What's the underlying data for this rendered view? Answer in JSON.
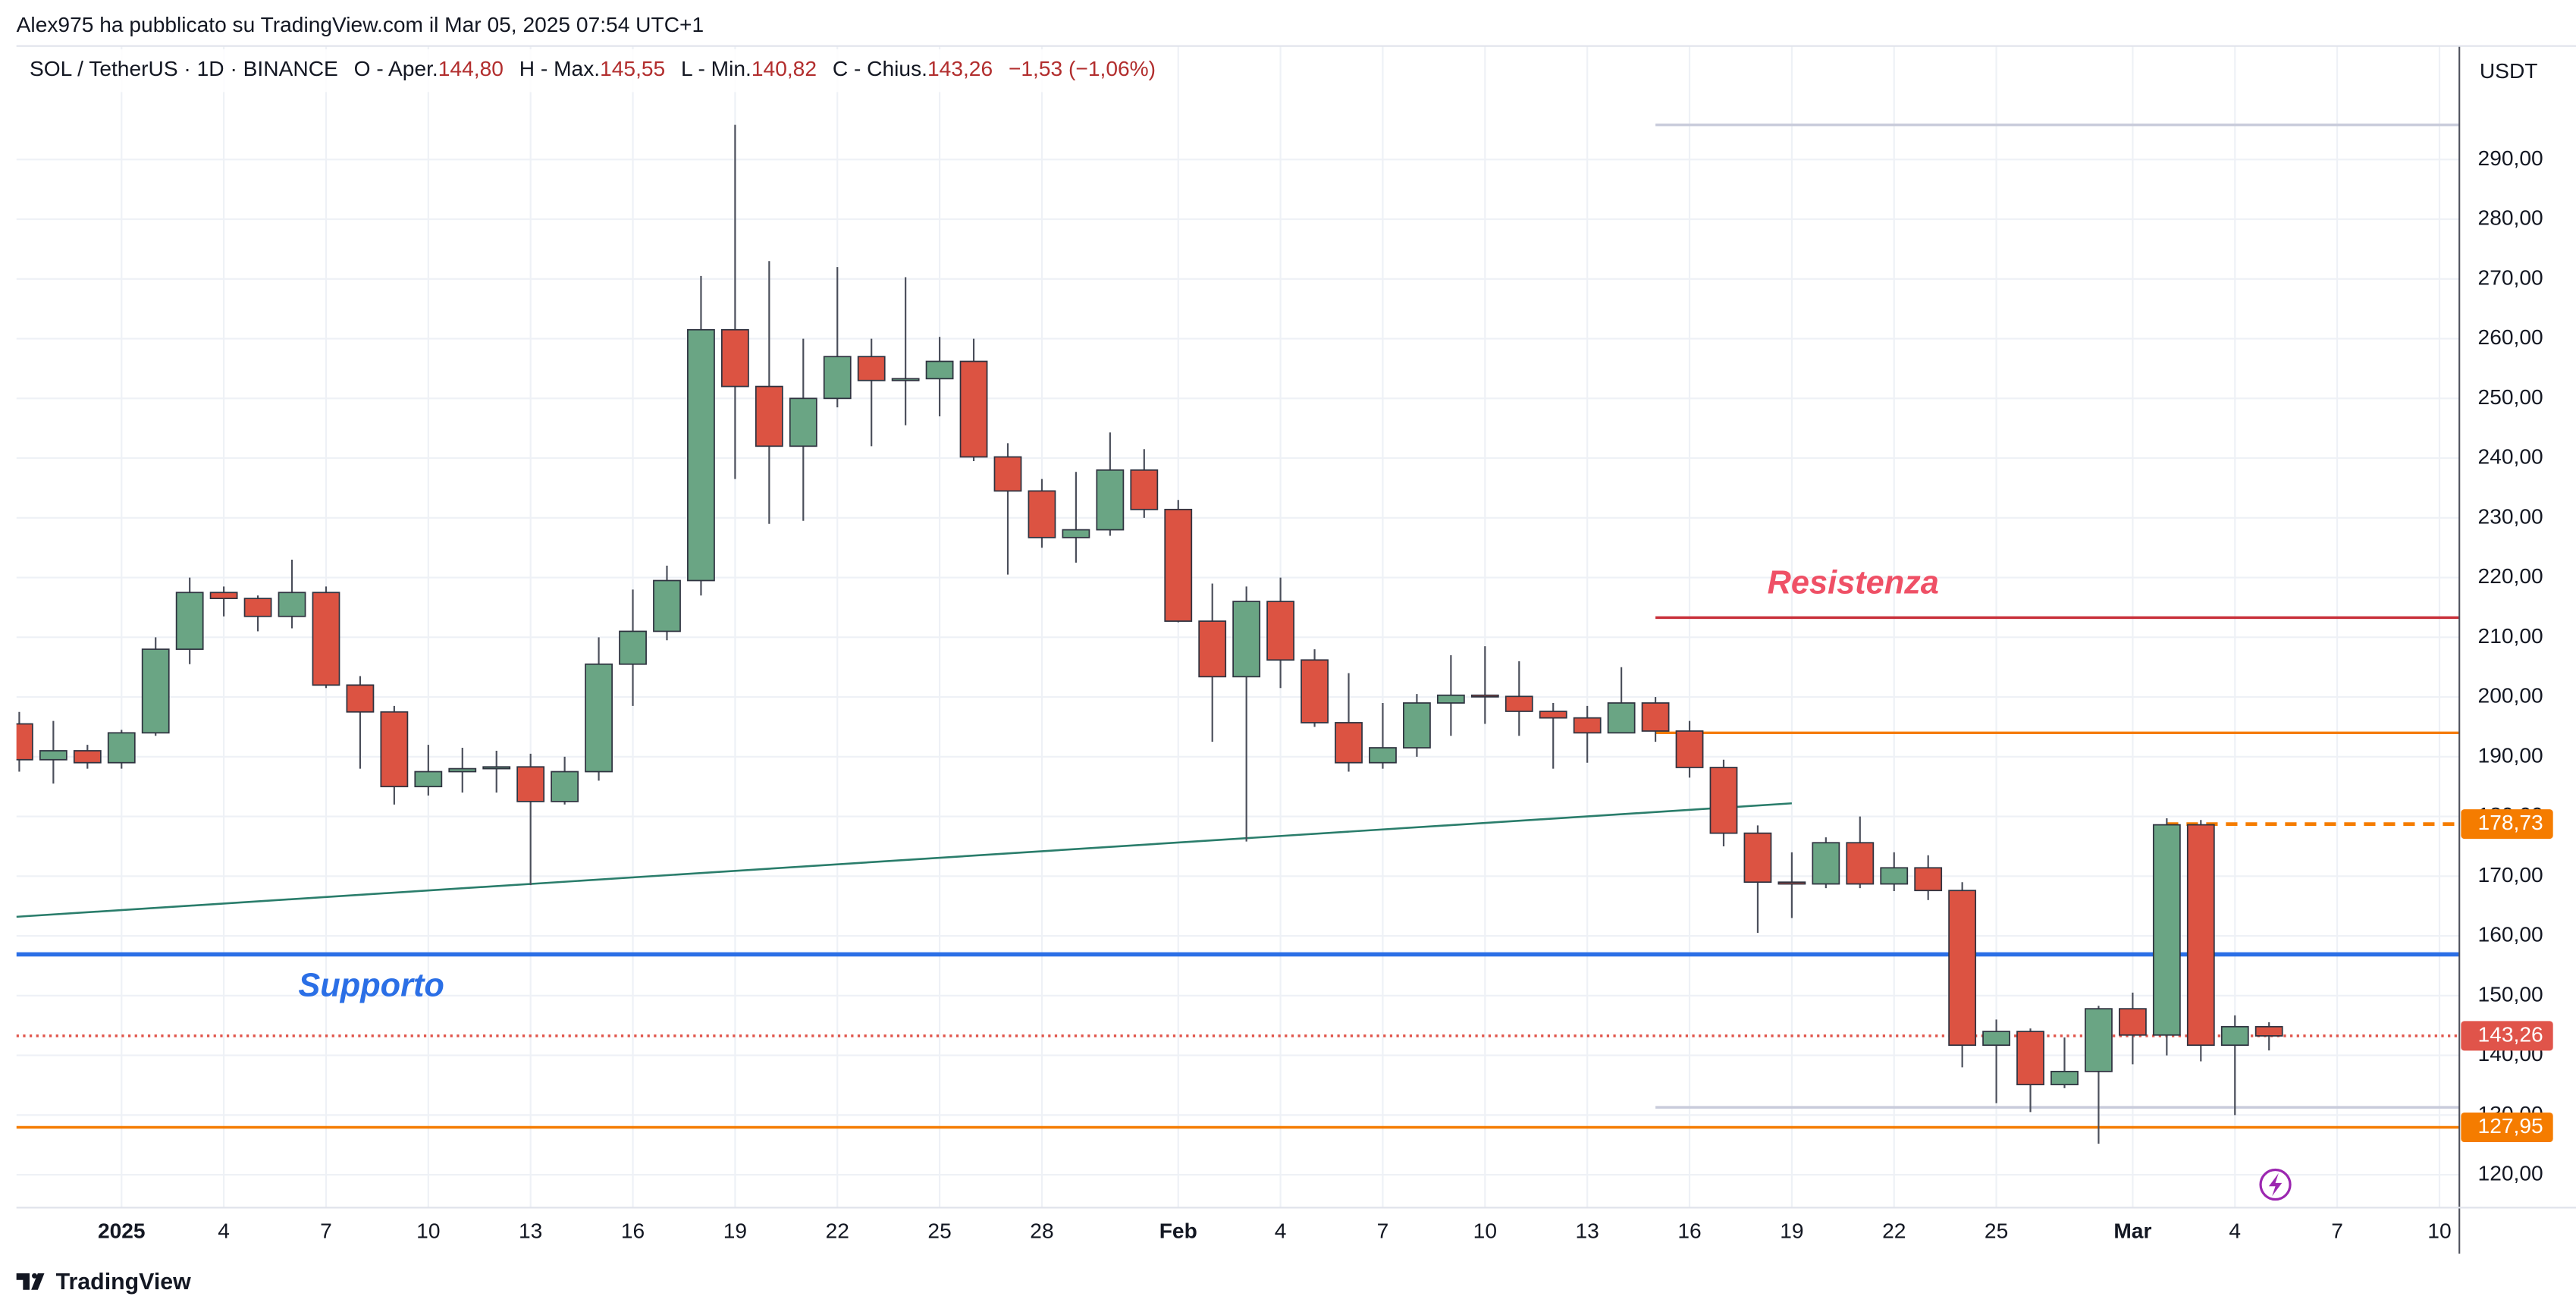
{
  "header": {
    "byline": "Alex975 ha pubblicato su TradingView.com il Mar 05, 2025 07:54 UTC+1",
    "symbol": "SOL / TetherUS · 1D · BINANCE",
    "ohlc": [
      {
        "label": "O - Aper.",
        "value": "144,80"
      },
      {
        "label": "H - Max.",
        "value": "145,55"
      },
      {
        "label": "L - Min.",
        "value": "140,82"
      },
      {
        "label": "C - Chius.",
        "value": "143,26"
      }
    ],
    "change": "−1,53 (−1,06%)",
    "axis_unit": "USDT",
    "footer": "TradingView"
  },
  "chart_data": {
    "type": "candlestick",
    "up_color": "#6aa584",
    "down_color": "#dc5342",
    "wick_color": "#4a4e5a",
    "grid": true,
    "x": [
      "2024-12-29",
      "2024-12-30",
      "2024-12-31",
      "2025-01-01",
      "2025-01-02",
      "2025-01-03",
      "2025-01-04",
      "2025-01-05",
      "2025-01-06",
      "2025-01-07",
      "2025-01-08",
      "2025-01-09",
      "2025-01-10",
      "2025-01-11",
      "2025-01-12",
      "2025-01-13",
      "2025-01-14",
      "2025-01-15",
      "2025-01-16",
      "2025-01-17",
      "2025-01-18",
      "2025-01-19",
      "2025-01-20",
      "2025-01-21",
      "2025-01-22",
      "2025-01-23",
      "2025-01-24",
      "2025-01-25",
      "2025-01-26",
      "2025-01-27",
      "2025-01-28",
      "2025-01-29",
      "2025-01-30",
      "2025-01-31",
      "2025-02-01",
      "2025-02-02",
      "2025-02-03",
      "2025-02-04",
      "2025-02-05",
      "2025-02-06",
      "2025-02-07",
      "2025-02-08",
      "2025-02-09",
      "2025-02-10",
      "2025-02-11",
      "2025-02-12",
      "2025-02-13",
      "2025-02-14",
      "2025-02-15",
      "2025-02-16",
      "2025-02-17",
      "2025-02-18",
      "2025-02-19",
      "2025-02-20",
      "2025-02-21",
      "2025-02-22",
      "2025-02-23",
      "2025-02-24",
      "2025-02-25",
      "2025-02-26",
      "2025-02-27",
      "2025-02-28",
      "2025-03-01",
      "2025-03-02",
      "2025-03-03",
      "2025-03-04",
      "2025-03-05"
    ],
    "open": [
      195.5,
      189.5,
      191,
      189,
      194,
      208,
      217.5,
      216.5,
      213.5,
      217.5,
      202,
      197.5,
      185,
      187.5,
      188,
      188.3,
      182.5,
      187.5,
      205.5,
      211,
      219.5,
      261.5,
      252,
      242,
      250,
      257,
      253,
      253.3,
      256.2,
      240.2,
      234.5,
      226.7,
      228,
      238,
      231.4,
      212.7,
      203.4,
      216,
      206.2,
      195.7,
      189,
      191.5,
      199,
      200.3,
      200.1,
      197.6,
      196.5,
      194,
      199,
      194.3,
      188.2,
      177.2,
      169,
      168.7,
      175.6,
      168.7,
      171.4,
      167.6,
      141.7,
      144,
      135.1,
      137.3,
      147.8,
      143.4,
      178.6,
      141.7,
      144.8
    ],
    "high": [
      197.5,
      196,
      192,
      194.5,
      210,
      220,
      218.5,
      217,
      223,
      218.5,
      203.5,
      198.5,
      192,
      191.5,
      191,
      190.5,
      190,
      210,
      218,
      222,
      270.5,
      295.8,
      273,
      260,
      272,
      260,
      270.3,
      260.3,
      260,
      242.5,
      236.5,
      237.7,
      244.3,
      241.5,
      233,
      219,
      218.5,
      220,
      208,
      204,
      199,
      200.5,
      207,
      208.5,
      206,
      199,
      198.5,
      205,
      200,
      196,
      189.5,
      178.5,
      174,
      176.5,
      180,
      174,
      173.5,
      169,
      146,
      144.5,
      143,
      148.3,
      150.5,
      179.7,
      179.4,
      146.7,
      145.55
    ],
    "low": [
      187.5,
      185.5,
      188,
      188,
      193.5,
      205.5,
      213.5,
      211,
      211.5,
      201.5,
      188,
      182,
      183.5,
      184,
      184,
      168.5,
      182,
      186,
      198.5,
      209.5,
      217,
      236.5,
      229,
      229.5,
      248.5,
      242,
      245.5,
      247,
      239.5,
      220.5,
      225,
      222.5,
      227,
      230,
      212.5,
      192.5,
      175.8,
      201.5,
      195,
      187.5,
      188,
      190,
      193.5,
      195.5,
      193.5,
      188,
      189,
      194,
      192.5,
      186.5,
      175,
      160.5,
      163,
      168,
      168,
      167.5,
      166,
      138,
      132,
      130.5,
      134.5,
      125.2,
      138.5,
      140,
      139,
      130,
      140.82
    ],
    "close": [
      189.5,
      191,
      189,
      194,
      208,
      217.5,
      216.5,
      213.5,
      217.5,
      202,
      197.5,
      185,
      187.5,
      188,
      188.3,
      182.5,
      187.5,
      205.5,
      211,
      219.5,
      261.5,
      252,
      242,
      250,
      257,
      253,
      253.3,
      256.2,
      240.2,
      234.5,
      226.7,
      228,
      238,
      231.4,
      212.7,
      203.4,
      216,
      206.2,
      195.7,
      189,
      191.5,
      199,
      200.3,
      200.1,
      197.6,
      196.5,
      194,
      199,
      194.3,
      188.2,
      177.2,
      169,
      168.7,
      175.6,
      168.7,
      171.4,
      167.6,
      141.7,
      144,
      135.1,
      137.3,
      147.8,
      143.4,
      178.6,
      141.7,
      144.8,
      143.26
    ],
    "xlim": [
      "2024-12-28T22:00Z",
      "2025-03-10T14:00Z"
    ],
    "xticks": [
      {
        "value": "2025-01-01",
        "label": "2025"
      },
      {
        "value": "2025-01-04",
        "label": "4"
      },
      {
        "value": "2025-01-07",
        "label": "7"
      },
      {
        "value": "2025-01-10",
        "label": "10"
      },
      {
        "value": "2025-01-13",
        "label": "13"
      },
      {
        "value": "2025-01-16",
        "label": "16"
      },
      {
        "value": "2025-01-19",
        "label": "19"
      },
      {
        "value": "2025-01-22",
        "label": "22"
      },
      {
        "value": "2025-01-25",
        "label": "25"
      },
      {
        "value": "2025-01-28",
        "label": "28"
      },
      {
        "value": "2025-02-01",
        "label": "Feb"
      },
      {
        "value": "2025-02-04",
        "label": "4"
      },
      {
        "value": "2025-02-07",
        "label": "7"
      },
      {
        "value": "2025-02-10",
        "label": "10"
      },
      {
        "value": "2025-02-13",
        "label": "13"
      },
      {
        "value": "2025-02-16",
        "label": "16"
      },
      {
        "value": "2025-02-19",
        "label": "19"
      },
      {
        "value": "2025-02-22",
        "label": "22"
      },
      {
        "value": "2025-02-25",
        "label": "25"
      },
      {
        "value": "2025-03-01",
        "label": "Mar"
      },
      {
        "value": "2025-03-04",
        "label": "4"
      },
      {
        "value": "2025-03-07",
        "label": "7"
      },
      {
        "value": "2025-03-10",
        "label": "10"
      }
    ],
    "ylim": [
      114.5,
      309
    ],
    "yticks": [
      {
        "value": 120,
        "label": "120,00"
      },
      {
        "value": 130,
        "label": "130,00"
      },
      {
        "value": 140,
        "label": "140,00"
      },
      {
        "value": 150,
        "label": "150,00"
      },
      {
        "value": 160,
        "label": "160,00"
      },
      {
        "value": 170,
        "label": "170,00"
      },
      {
        "value": 180,
        "label": "180,00"
      },
      {
        "value": 190,
        "label": "190,00"
      },
      {
        "value": 200,
        "label": "200,00"
      },
      {
        "value": 210,
        "label": "210,00"
      },
      {
        "value": 220,
        "label": "220,00"
      },
      {
        "value": 230,
        "label": "230,00"
      },
      {
        "value": 240,
        "label": "240,00"
      },
      {
        "value": 250,
        "label": "250,00"
      },
      {
        "value": 260,
        "label": "260,00"
      },
      {
        "value": 270,
        "label": "270,00"
      },
      {
        "value": 280,
        "label": "280,00"
      },
      {
        "value": 290,
        "label": "290,00"
      }
    ],
    "levels": [
      {
        "value": 295.8,
        "color": "#c9ccdb",
        "start": "2025-02-15",
        "style": "solid"
      },
      {
        "value": 213.3,
        "color": "#c9303a",
        "start": "2025-02-15",
        "style": "solid"
      },
      {
        "value": 194,
        "color": "#f57c00",
        "start": "2025-02-15",
        "style": "solid"
      },
      {
        "value": 178.73,
        "label": "178,73",
        "color": "#f57c00",
        "start": "2025-03-02",
        "style": "dashed"
      },
      {
        "value": 156.9,
        "color": "#2b6fe6",
        "style": "bold"
      },
      {
        "value": 143.26,
        "label": "143,26",
        "color": "#e0544a",
        "style": "dotted"
      },
      {
        "value": 131.3,
        "color": "#c9ccdb",
        "start": "2025-02-15",
        "style": "solid"
      },
      {
        "value": 127.95,
        "label": "127,95",
        "color": "#f57c00",
        "style": "solid"
      }
    ],
    "trendlines": [
      {
        "x": [
          "2024-12-28T22:00Z",
          "2025-02-19"
        ],
        "values": [
          163.2,
          182.2
        ],
        "color": "#2a7d6b"
      }
    ],
    "annotations": [
      {
        "text": "Resistenza",
        "color": "#ef5066"
      },
      {
        "text": "Supporto",
        "color": "#2b6fe6"
      }
    ]
  }
}
